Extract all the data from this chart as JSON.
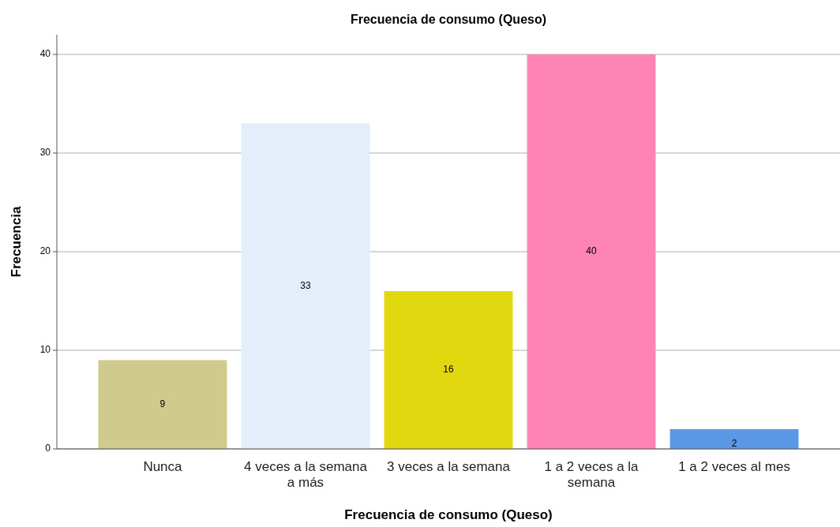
{
  "chart_data": {
    "type": "bar",
    "title": "Frecuencia de consumo (Queso)",
    "xlabel": "Frecuencia de consumo (Queso)",
    "ylabel": "Frecuencia",
    "categories": [
      "Nunca",
      "4 veces a la semana a más",
      "3 veces a la semana",
      "1 a 2 veces a la semana",
      "1 a 2 veces al mes"
    ],
    "values": [
      9,
      33,
      16,
      40,
      2
    ],
    "colors": [
      "#d0ca8e",
      "#e3eefa",
      "#e2d80f",
      "#fe84b4",
      "#5a98e6"
    ],
    "ylim": [
      0,
      42
    ],
    "yticks": [
      0,
      10,
      20,
      30,
      40
    ],
    "grid": "y",
    "data_labels": true
  }
}
